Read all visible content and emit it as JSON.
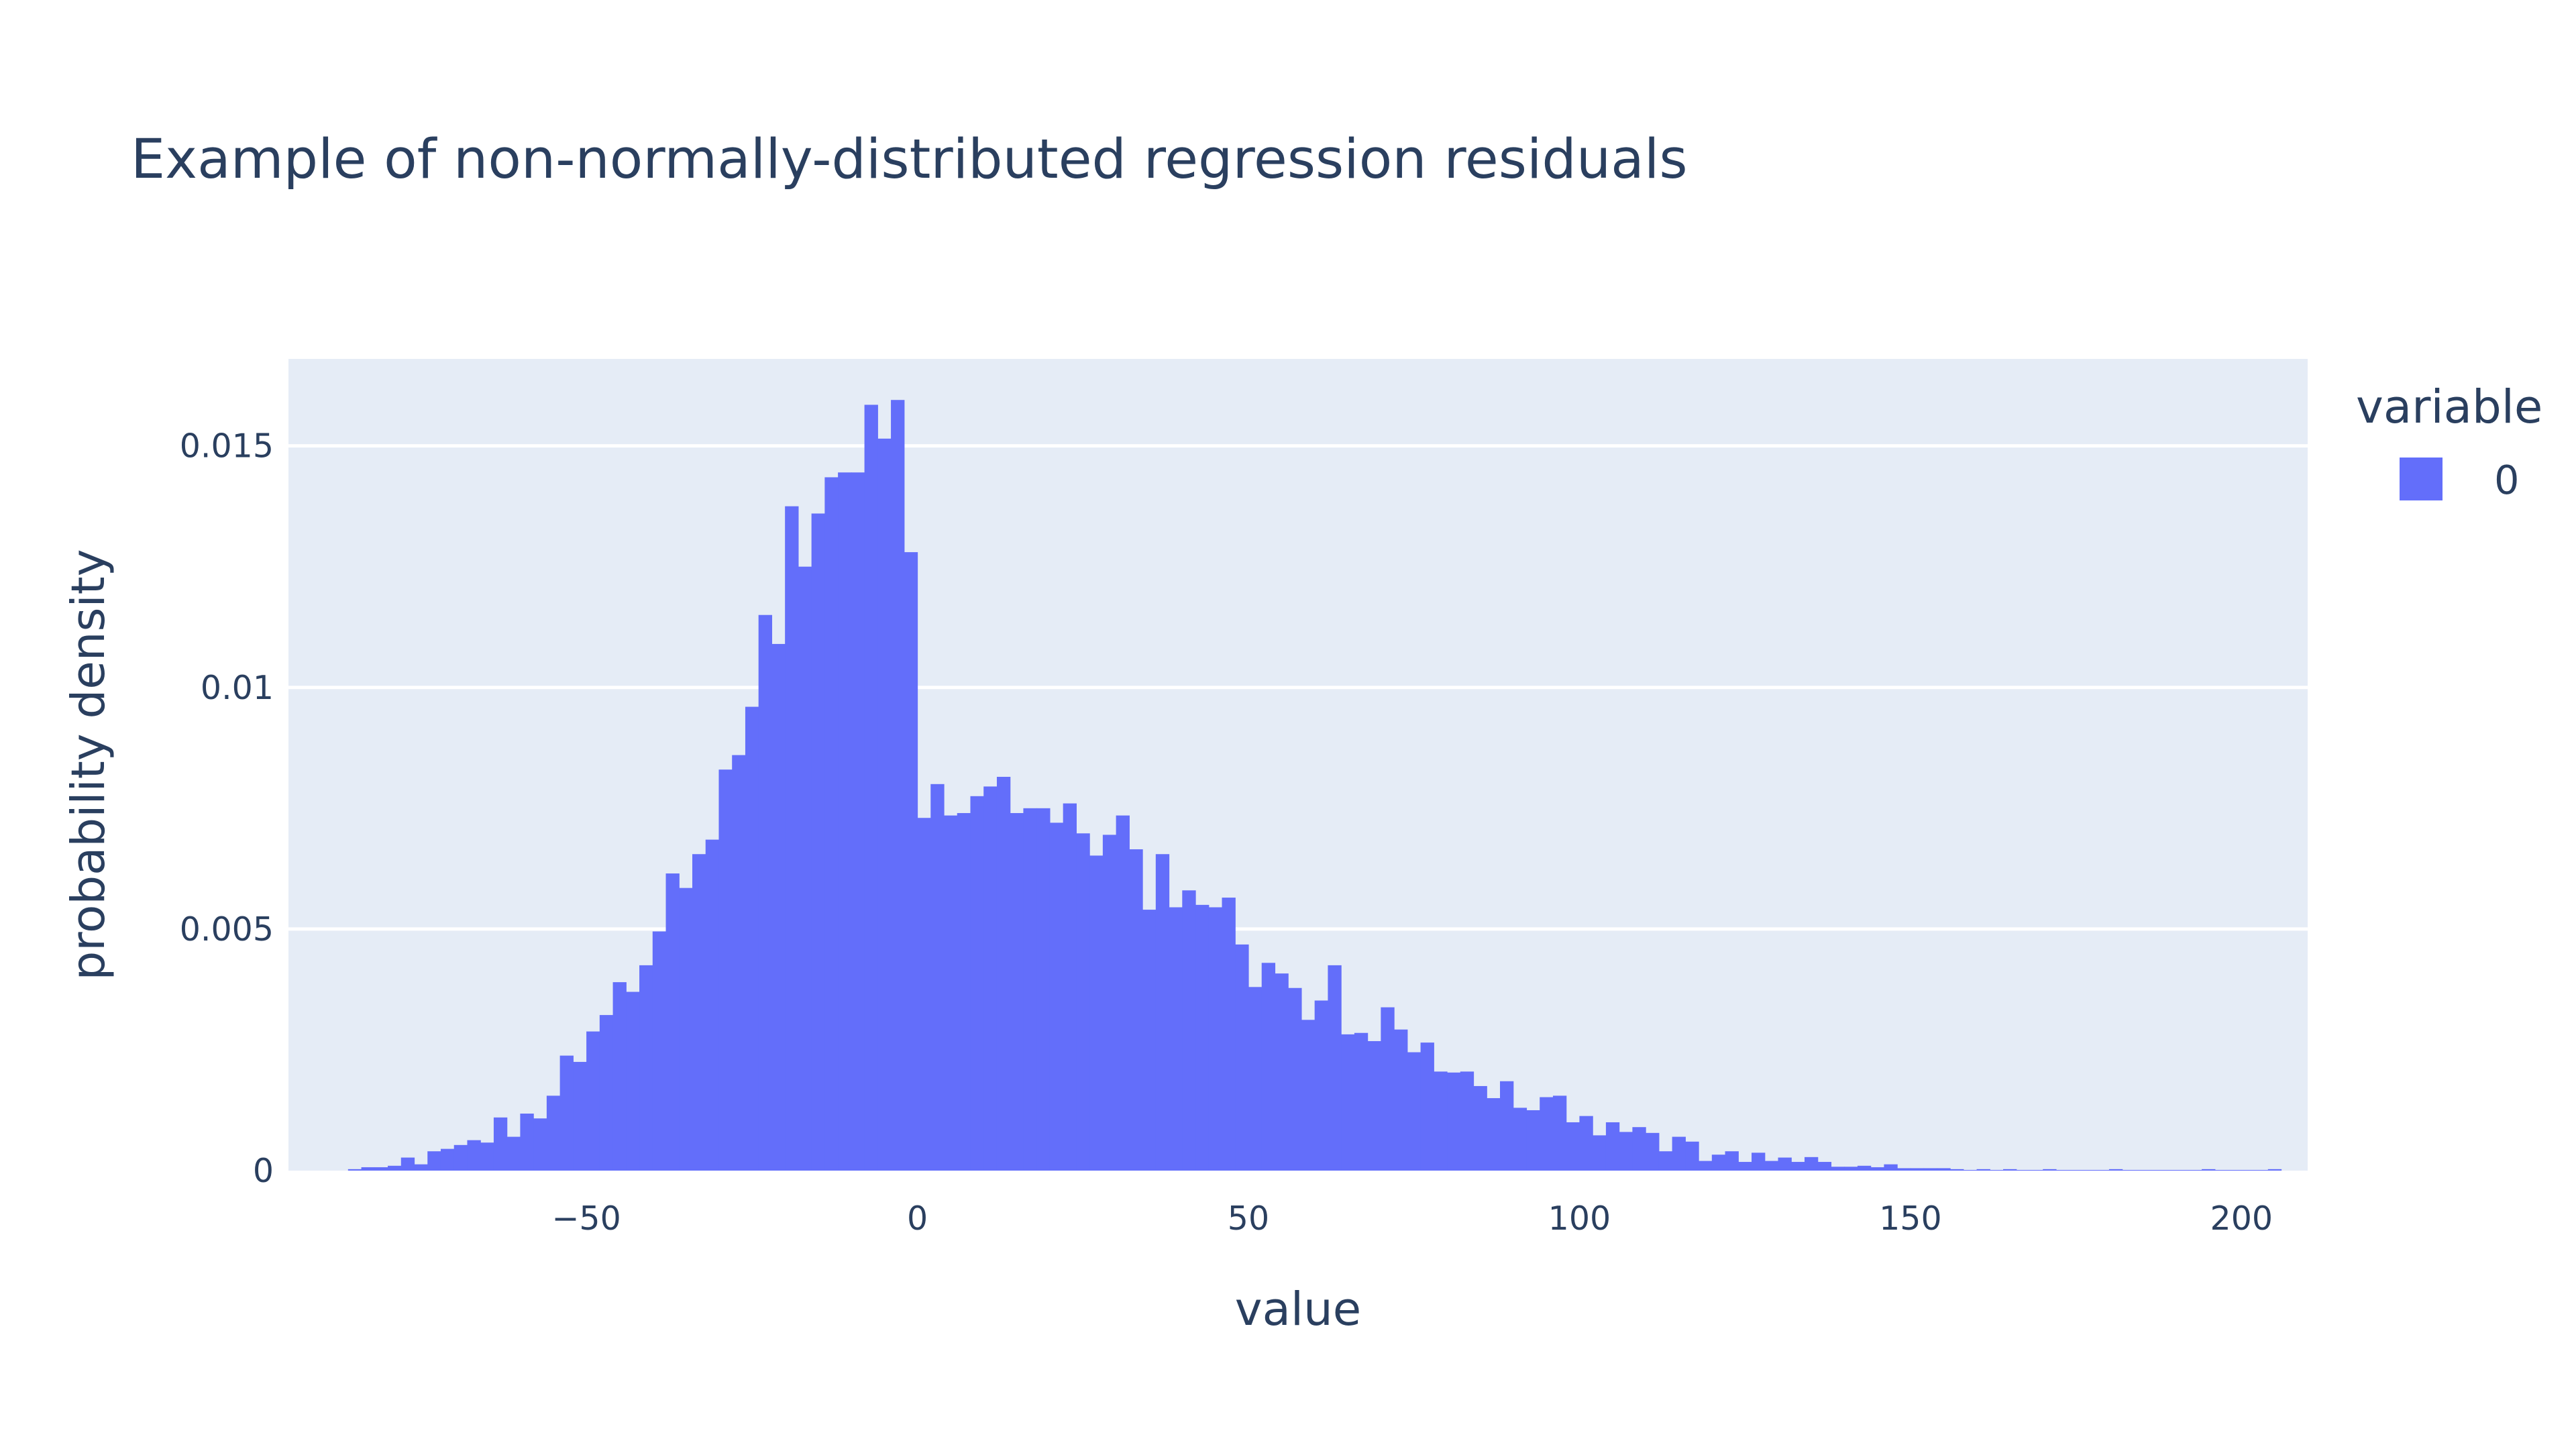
{
  "chart_data": {
    "type": "bar",
    "subtype": "histogram",
    "title": "Example of non-normally-distributed regression residuals",
    "xlabel": "value",
    "ylabel": "probability density",
    "legend": {
      "title": "variable",
      "entries": [
        "0"
      ],
      "placement": "right"
    },
    "xlim": [
      -95,
      210
    ],
    "ylim": [
      0,
      0.0168
    ],
    "xticks": [
      -50,
      0,
      50,
      100,
      150,
      200
    ],
    "xtick_labels": [
      "−50",
      "0",
      "50",
      "100",
      "150",
      "200"
    ],
    "yticks": [
      0,
      0.005,
      0.01,
      0.015
    ],
    "ytick_labels": [
      "0",
      "0.005",
      "0.01",
      "0.015"
    ],
    "grid": true,
    "colors": {
      "bar": "#636efa",
      "plot_bg": "#e5ecf6",
      "grid": "#ffffff",
      "text": "#2a3f5f"
    },
    "bin_width": 2,
    "bin_start": -86,
    "series": [
      {
        "name": "0",
        "values": [
          3e-05,
          7e-05,
          7e-05,
          0.0001,
          0.00027,
          0.00013,
          0.0004,
          0.00045,
          0.00053,
          0.00063,
          0.00058,
          0.0011,
          0.0007,
          0.00118,
          0.00108,
          0.00155,
          0.00238,
          0.00225,
          0.00288,
          0.00322,
          0.0039,
          0.0037,
          0.00425,
          0.00495,
          0.00615,
          0.00585,
          0.00655,
          0.00685,
          0.0083,
          0.0086,
          0.0096,
          0.0115,
          0.0109,
          0.01375,
          0.0125,
          0.0136,
          0.01435,
          0.01445,
          0.01445,
          0.01585,
          0.01515,
          0.01595,
          0.0128,
          0.0073,
          0.008,
          0.00735,
          0.0074,
          0.00775,
          0.00795,
          0.00815,
          0.0074,
          0.0075,
          0.0075,
          0.0072,
          0.0076,
          0.00698,
          0.00652,
          0.00695,
          0.00735,
          0.00665,
          0.0054,
          0.00655,
          0.00545,
          0.0058,
          0.0055,
          0.00545,
          0.00565,
          0.00468,
          0.0038,
          0.0043,
          0.00408,
          0.00378,
          0.00312,
          0.00352,
          0.00425,
          0.00282,
          0.00285,
          0.00268,
          0.00338,
          0.00292,
          0.00245,
          0.00265,
          0.00205,
          0.00203,
          0.00205,
          0.00175,
          0.0015,
          0.00185,
          0.0013,
          0.00125,
          0.00152,
          0.00155,
          0.001,
          0.00113,
          0.00073,
          0.001,
          0.0008,
          0.0009,
          0.00078,
          0.0004,
          0.0007,
          0.0006,
          0.0002,
          0.00033,
          0.0004,
          0.00018,
          0.00037,
          0.0002,
          0.00027,
          0.00018,
          0.00028,
          0.00018,
          8e-05,
          8e-05,
          0.0001,
          7e-05,
          0.00013,
          5e-05,
          5e-05,
          5e-05,
          5e-05,
          3e-05,
          0.0,
          3e-05,
          0.0,
          3e-05,
          0.0,
          0.0,
          3e-05,
          0.0,
          0.0,
          0.0,
          0.0,
          3e-05,
          0.0,
          0.0,
          0.0,
          0.0,
          0.0,
          0.0,
          3e-05,
          0.0,
          0.0,
          0.0,
          0.0,
          3e-05
        ]
      }
    ]
  }
}
